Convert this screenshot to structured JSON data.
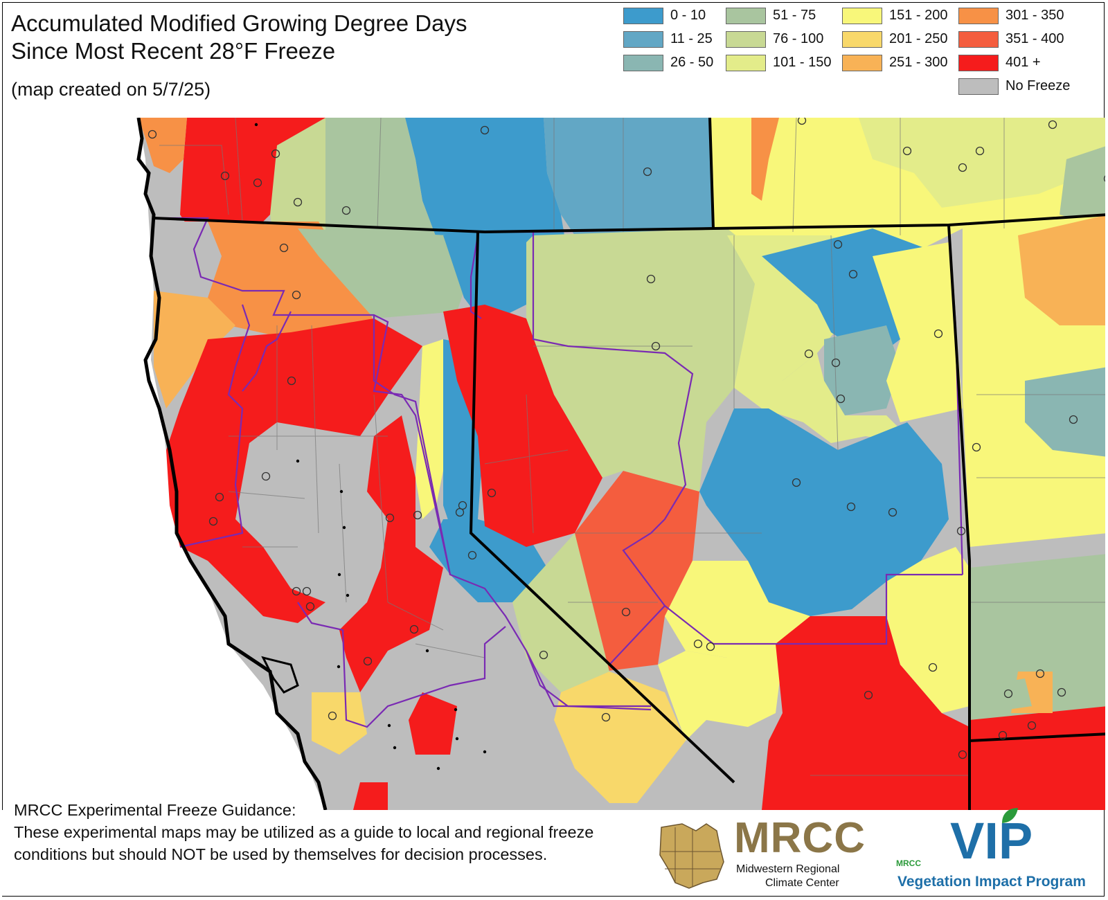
{
  "title": {
    "line1": "Accumulated Modified Growing Degree Days",
    "line2": "Since Most Recent 28°F Freeze",
    "subtitle": "(map created on 5/7/25)"
  },
  "legend": [
    {
      "label": "0 - 10",
      "color": "#3d9bcc"
    },
    {
      "label": "11 - 25",
      "color": "#62a7c5"
    },
    {
      "label": "26 - 50",
      "color": "#8ab6b2"
    },
    {
      "label": "51 - 75",
      "color": "#a9c59f"
    },
    {
      "label": "76 - 100",
      "color": "#c8d994"
    },
    {
      "label": "101 - 150",
      "color": "#e3ec8a"
    },
    {
      "label": "151 - 200",
      "color": "#f8f77a"
    },
    {
      "label": "201 - 250",
      "color": "#f8d86a"
    },
    {
      "label": "251 - 300",
      "color": "#f8b256"
    },
    {
      "label": "301 - 350",
      "color": "#f79146"
    },
    {
      "label": "351 - 400",
      "color": "#f45d3e"
    },
    {
      "label": "401 +",
      "color": "#f51c1c"
    },
    {
      "label": "No Freeze",
      "color": "#bdbdbd"
    }
  ],
  "disclaimer": {
    "title": "MRCC Experimental Freeze Guidance:",
    "text": "These experimental maps may be utilized as a guide to local and regional freeze conditions but should NOT be used by themselves for decision processes."
  },
  "logos": {
    "mrcc_name": "MRCC",
    "mrcc_line1": "Midwestern Regional",
    "mrcc_line2": "Climate Center",
    "vip_small": "MRCC",
    "vip_name": "VIP",
    "vip_full": "Vegetation Impact Program"
  },
  "colors": {
    "state_border": "#000000",
    "forecast_zone_border": "#7a2ab3",
    "county_line": "#777777",
    "coast": "#000000"
  }
}
